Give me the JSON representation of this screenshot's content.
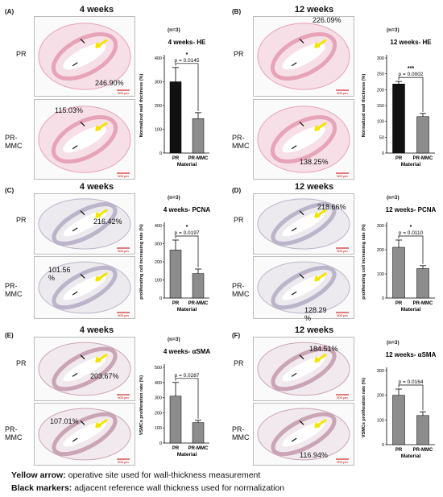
{
  "legend": {
    "yellow_label": "Yellow arrow:",
    "yellow_text": " operative site used for wall-thickness measurement",
    "black_label": "Black markers:",
    "black_text": " adjacent reference wall thickness used for normalization"
  },
  "colors": {
    "he_stain": "#e7a3b8",
    "he_bg": "#f6dfe6",
    "pcna_stain": "#bcb4c9",
    "pcna_bg": "#ece9ef",
    "sma_stain": "#c9a5b6",
    "sma_bg": "#f2e9ee",
    "arrow": "#f5e400",
    "black_bar": "#111111",
    "gray_bar": "#8c8c8c"
  },
  "scale_label": "500 μm",
  "panels": [
    {
      "label": "(A)",
      "title": "4 weeks",
      "n": "(n=3)",
      "row_top": "PR",
      "row_bottom": "PR-MMC",
      "pct_top": "246.90%",
      "pct_bottom": "115.03%",
      "stain": "he",
      "chart": {
        "title": "4 weeks- HE",
        "ylabel": "Normalized wall thickness (%)",
        "xlabel": "Material",
        "categories": [
          "PR",
          "PR-MMC"
        ],
        "values": [
          300,
          145
        ],
        "errors": [
          60,
          25
        ],
        "ylim": [
          0,
          400
        ],
        "yticks": [
          0,
          100,
          200,
          300,
          400
        ],
        "stars": "*",
        "p": "p = 0.0145",
        "dark": true
      }
    },
    {
      "label": "(B)",
      "title": "12 weeks",
      "n": "(n=3)",
      "row_top": "PR",
      "row_bottom": "PR-MMC",
      "pct_top": "226.09%",
      "pct_bottom": "138.25%",
      "stain": "he",
      "chart": {
        "title": "12 weeks- HE",
        "ylabel": "Normalized wall thickness (%)",
        "xlabel": "Material",
        "categories": [
          "PR",
          "PR-MMC"
        ],
        "values": [
          218,
          115
        ],
        "errors": [
          8,
          10
        ],
        "ylim": [
          0,
          300
        ],
        "yticks": [
          0,
          50,
          100,
          150,
          200,
          250,
          300
        ],
        "stars": "***",
        "p": "p = 0.0002",
        "dark": true
      }
    },
    {
      "label": "(C)",
      "title": "4 weeks",
      "n": "(n=3)",
      "row_top": "PR",
      "row_bottom": "PR-MMC",
      "pct_top": "216.42%",
      "pct_bottom": "101.56 %",
      "stain": "pcna",
      "chart": {
        "title": "4 weeks- PCNA",
        "ylabel": "proliferating cell increasing rate (%)",
        "xlabel": "Material",
        "categories": [
          "PR",
          "PR-MMC"
        ],
        "values": [
          265,
          135
        ],
        "errors": [
          55,
          25
        ],
        "ylim": [
          0,
          400
        ],
        "yticks": [
          0,
          100,
          200,
          300,
          400
        ],
        "stars": "*",
        "p": "p = 0.0197",
        "dark": false
      }
    },
    {
      "label": "(D)",
      "title": "12 weeks",
      "n": "(n=3)",
      "row_top": "PR",
      "row_bottom": "PR-MMC",
      "pct_top": "218.66%",
      "pct_bottom": "128.29 %",
      "stain": "pcna",
      "chart": {
        "title": "12 weeks- PCNA",
        "ylabel": "proliferating cell increasing rate (%)",
        "xlabel": "Material",
        "categories": [
          "PR",
          "PR-MMC"
        ],
        "values": [
          210,
          122
        ],
        "errors": [
          30,
          12
        ],
        "ylim": [
          0,
          300
        ],
        "yticks": [
          0,
          100,
          200,
          300
        ],
        "stars": "*",
        "p": "p = 0.0110",
        "dark": false
      }
    },
    {
      "label": "(E)",
      "title": "4 weeks",
      "n": "(n=3)",
      "row_top": "PR",
      "row_bottom": "PR-MMC",
      "pct_top": "203.67%",
      "pct_bottom": "107.01%",
      "stain": "sma",
      "chart": {
        "title": "4 weeks- αSMA",
        "ylabel": "VSMCs proliferation rate (%)",
        "xlabel": "Material",
        "categories": [
          "PR",
          "PR-MMC"
        ],
        "values": [
          310,
          135
        ],
        "errors": [
          90,
          15
        ],
        "ylim": [
          0,
          500
        ],
        "yticks": [
          0,
          100,
          200,
          300,
          400,
          500
        ],
        "stars": "",
        "p": "p = 0.0287",
        "dark": false
      }
    },
    {
      "label": "(F)",
      "title": "12 weeks",
      "n": "(n=3)",
      "row_top": "PR",
      "row_bottom": "PR-MMC",
      "pct_top": "184.51%",
      "pct_bottom": "116.94%",
      "stain": "sma",
      "chart": {
        "title": "12 weeks- αSMA",
        "ylabel": "VSMCs proliferation rate (%)",
        "xlabel": "Material",
        "categories": [
          "PR",
          "PR-MMC"
        ],
        "values": [
          200,
          118
        ],
        "errors": [
          25,
          15
        ],
        "ylim": [
          0,
          300
        ],
        "yticks": [
          0,
          100,
          200,
          300
        ],
        "stars": "",
        "p": "p = 0.0164",
        "dark": false
      }
    }
  ]
}
